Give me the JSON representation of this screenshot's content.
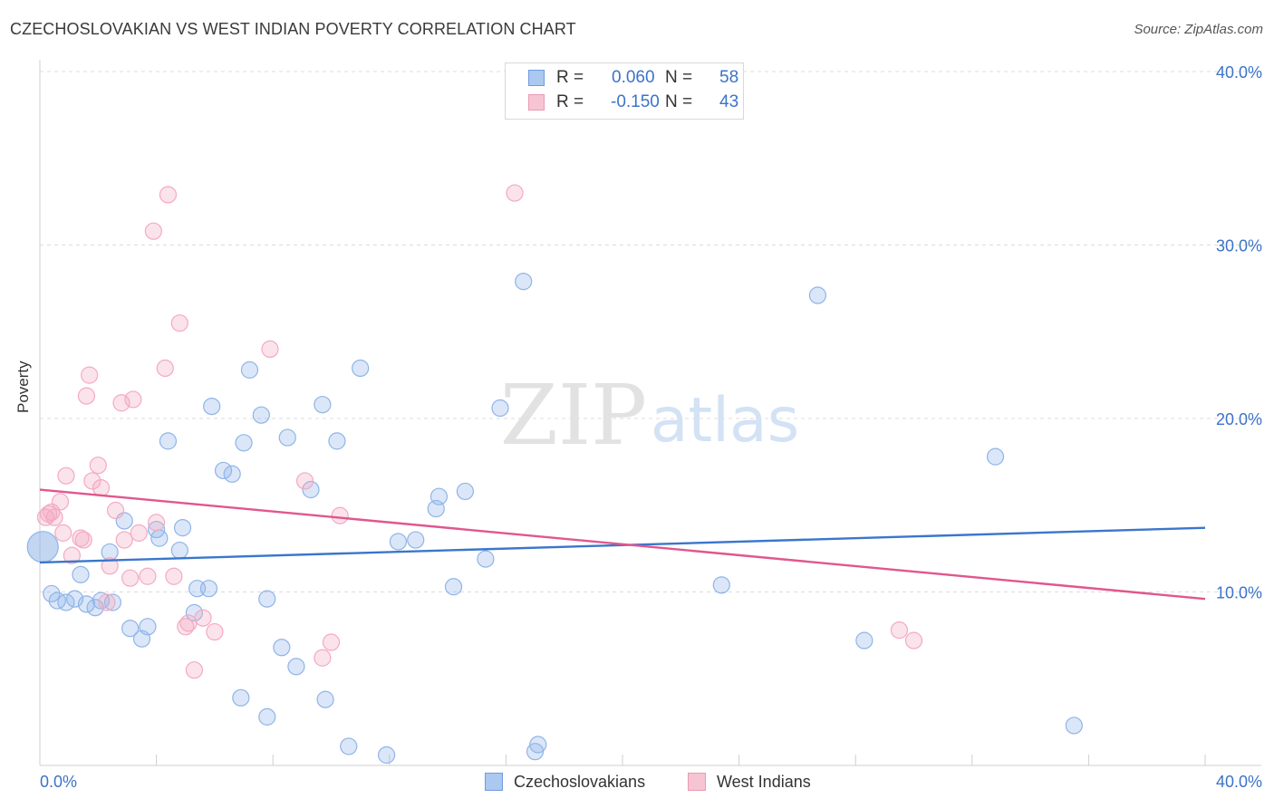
{
  "title": "CZECHOSLOVAKIAN VS WEST INDIAN POVERTY CORRELATION CHART",
  "source": "Source: ZipAtlas.com",
  "watermark": {
    "zip": "ZIP",
    "atlas": "atlas"
  },
  "stats": [
    {
      "r_label": "R =",
      "r_value": "0.060",
      "n_label": "N =",
      "n_value": "58",
      "color": "#aac8f0",
      "border": "#6f9be0"
    },
    {
      "r_label": "R =",
      "r_value": "-0.150",
      "n_label": "N =",
      "n_value": "43",
      "color": "#f7c4d4",
      "border": "#e99ab4"
    }
  ],
  "legend": [
    {
      "label": "Czechoslovakians",
      "color": "#aac8f0",
      "border": "#6f9be0"
    },
    {
      "label": "West Indians",
      "color": "#f7c4d4",
      "border": "#e99ab4"
    }
  ],
  "chart_data": {
    "type": "scatter",
    "title": "CZECHOSLOVAKIAN VS WEST INDIAN POVERTY CORRELATION CHART",
    "xlabel": "",
    "ylabel": "Poverty",
    "xlim": [
      0,
      40
    ],
    "ylim": [
      0,
      40
    ],
    "x_tick_labels": [
      "0.0%",
      "40.0%"
    ],
    "y_ticks": [
      10,
      20,
      30,
      40
    ],
    "y_tick_labels": [
      "10.0%",
      "20.0%",
      "30.0%",
      "40.0%"
    ],
    "grid": true,
    "series": [
      {
        "name": "Czechoslovakians",
        "color": "#8fb4e8",
        "line_color": "#3a76cc",
        "trend": [
          [
            0,
            11.7
          ],
          [
            40,
            13.7
          ]
        ],
        "points": [
          [
            0.1,
            12.6
          ],
          [
            0.4,
            9.9
          ],
          [
            0.6,
            9.5
          ],
          [
            0.9,
            9.4
          ],
          [
            1.2,
            9.6
          ],
          [
            1.4,
            11.0
          ],
          [
            1.6,
            9.3
          ],
          [
            1.9,
            9.1
          ],
          [
            2.1,
            9.5
          ],
          [
            2.4,
            12.3
          ],
          [
            2.5,
            9.4
          ],
          [
            2.9,
            14.1
          ],
          [
            3.1,
            7.9
          ],
          [
            3.5,
            7.3
          ],
          [
            3.7,
            8.0
          ],
          [
            4.0,
            13.6
          ],
          [
            4.1,
            13.1
          ],
          [
            4.4,
            18.7
          ],
          [
            4.8,
            12.4
          ],
          [
            4.9,
            13.7
          ],
          [
            5.3,
            8.8
          ],
          [
            5.4,
            10.2
          ],
          [
            5.8,
            10.2
          ],
          [
            5.9,
            20.7
          ],
          [
            6.3,
            17.0
          ],
          [
            6.6,
            16.8
          ],
          [
            6.9,
            3.9
          ],
          [
            7.0,
            18.6
          ],
          [
            7.2,
            22.8
          ],
          [
            7.6,
            20.2
          ],
          [
            7.8,
            9.6
          ],
          [
            7.8,
            2.8
          ],
          [
            8.3,
            6.8
          ],
          [
            8.5,
            18.9
          ],
          [
            8.8,
            5.7
          ],
          [
            9.3,
            15.9
          ],
          [
            9.7,
            20.8
          ],
          [
            9.8,
            3.8
          ],
          [
            10.2,
            18.7
          ],
          [
            10.6,
            1.1
          ],
          [
            11.0,
            22.9
          ],
          [
            11.9,
            0.6
          ],
          [
            12.3,
            12.9
          ],
          [
            12.9,
            13.0
          ],
          [
            13.6,
            14.8
          ],
          [
            13.7,
            15.5
          ],
          [
            14.2,
            10.3
          ],
          [
            14.6,
            15.8
          ],
          [
            15.3,
            11.9
          ],
          [
            15.8,
            20.6
          ],
          [
            16.6,
            27.9
          ],
          [
            17.0,
            0.8
          ],
          [
            17.1,
            1.2
          ],
          [
            23.4,
            10.4
          ],
          [
            26.7,
            27.1
          ],
          [
            28.3,
            7.2
          ],
          [
            32.8,
            17.8
          ],
          [
            35.5,
            2.3
          ]
        ]
      },
      {
        "name": "West Indians",
        "color": "#f4a9c2",
        "line_color": "#e0578c",
        "trend": [
          [
            0,
            15.9
          ],
          [
            40,
            9.6
          ]
        ],
        "points": [
          [
            0.2,
            14.3
          ],
          [
            0.3,
            14.5
          ],
          [
            0.4,
            14.6
          ],
          [
            0.5,
            14.3
          ],
          [
            0.7,
            15.2
          ],
          [
            0.8,
            13.4
          ],
          [
            0.9,
            16.7
          ],
          [
            1.1,
            12.1
          ],
          [
            1.4,
            13.1
          ],
          [
            1.5,
            13.0
          ],
          [
            1.6,
            21.3
          ],
          [
            1.7,
            22.5
          ],
          [
            1.8,
            16.4
          ],
          [
            2.0,
            17.3
          ],
          [
            2.1,
            16.0
          ],
          [
            2.3,
            9.4
          ],
          [
            2.4,
            11.5
          ],
          [
            2.6,
            14.7
          ],
          [
            2.8,
            20.9
          ],
          [
            2.9,
            13.0
          ],
          [
            3.1,
            10.8
          ],
          [
            3.2,
            21.1
          ],
          [
            3.4,
            13.4
          ],
          [
            3.7,
            10.9
          ],
          [
            3.9,
            30.8
          ],
          [
            4.0,
            14.0
          ],
          [
            4.3,
            22.9
          ],
          [
            4.4,
            32.9
          ],
          [
            4.6,
            10.9
          ],
          [
            4.8,
            25.5
          ],
          [
            5.0,
            8.0
          ],
          [
            5.1,
            8.2
          ],
          [
            5.3,
            5.5
          ],
          [
            5.6,
            8.5
          ],
          [
            6.0,
            7.7
          ],
          [
            7.9,
            24.0
          ],
          [
            9.1,
            16.4
          ],
          [
            9.7,
            6.2
          ],
          [
            10.0,
            7.1
          ],
          [
            10.3,
            14.4
          ],
          [
            16.3,
            33.0
          ],
          [
            29.5,
            7.8
          ],
          [
            30.0,
            7.2
          ]
        ]
      }
    ]
  }
}
